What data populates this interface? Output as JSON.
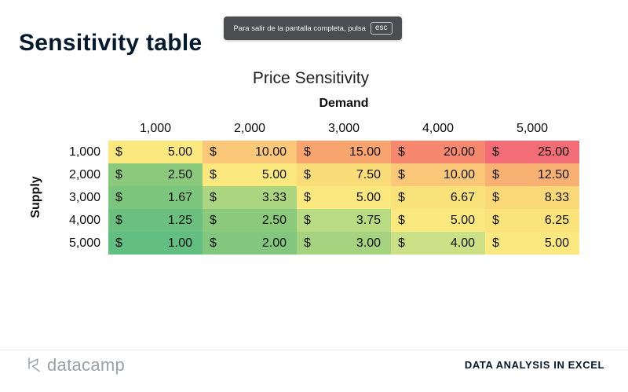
{
  "notification": {
    "text": "Para salir de la pantalla completa, pulsa",
    "key": "esc"
  },
  "title": "Sensitivity table",
  "chart": {
    "title": "Price Sensitivity",
    "col_axis_label": "Demand",
    "row_axis_label": "Supply",
    "columns": [
      "1,000",
      "2,000",
      "3,000",
      "4,000",
      "5,000"
    ],
    "rows": [
      {
        "label": "1,000",
        "cells": [
          {
            "currency": "$",
            "value": "5.00",
            "bg": "#FBE87E"
          },
          {
            "currency": "$",
            "value": "10.00",
            "bg": "#FAC878"
          },
          {
            "currency": "$",
            "value": "15.00",
            "bg": "#F8A46F"
          },
          {
            "currency": "$",
            "value": "20.00",
            "bg": "#F68870"
          },
          {
            "currency": "$",
            "value": "25.00",
            "bg": "#F36D76"
          }
        ]
      },
      {
        "label": "2,000",
        "cells": [
          {
            "currency": "$",
            "value": "2.50",
            "bg": "#8BC97D"
          },
          {
            "currency": "$",
            "value": "5.00",
            "bg": "#FBE87E"
          },
          {
            "currency": "$",
            "value": "7.50",
            "bg": "#FADD79"
          },
          {
            "currency": "$",
            "value": "10.00",
            "bg": "#FAC878"
          },
          {
            "currency": "$",
            "value": "12.50",
            "bg": "#F8B172"
          }
        ]
      },
      {
        "label": "3,000",
        "cells": [
          {
            "currency": "$",
            "value": "1.67",
            "bg": "#7BC57D"
          },
          {
            "currency": "$",
            "value": "3.33",
            "bg": "#ABD581"
          },
          {
            "currency": "$",
            "value": "5.00",
            "bg": "#FBE87E"
          },
          {
            "currency": "$",
            "value": "6.67",
            "bg": "#FAE27A"
          },
          {
            "currency": "$",
            "value": "8.33",
            "bg": "#F9D977"
          }
        ]
      },
      {
        "label": "4,000",
        "cells": [
          {
            "currency": "$",
            "value": "1.25",
            "bg": "#6CC07F"
          },
          {
            "currency": "$",
            "value": "2.50",
            "bg": "#8BC97D"
          },
          {
            "currency": "$",
            "value": "3.75",
            "bg": "#B9DB84"
          },
          {
            "currency": "$",
            "value": "5.00",
            "bg": "#FBE87E"
          },
          {
            "currency": "$",
            "value": "6.25",
            "bg": "#FAE37B"
          }
        ]
      },
      {
        "label": "5,000",
        "cells": [
          {
            "currency": "$",
            "value": "1.00",
            "bg": "#63BE81"
          },
          {
            "currency": "$",
            "value": "2.00",
            "bg": "#82C77D"
          },
          {
            "currency": "$",
            "value": "3.00",
            "bg": "#A5D380"
          },
          {
            "currency": "$",
            "value": "4.00",
            "bg": "#CCE187"
          },
          {
            "currency": "$",
            "value": "5.00",
            "bg": "#FBE87E"
          }
        ]
      }
    ]
  },
  "chart_data": {
    "type": "heatmap",
    "title": "Price Sensitivity",
    "xlabel": "Demand",
    "ylabel": "Supply",
    "x_categories": [
      1000,
      2000,
      3000,
      4000,
      5000
    ],
    "y_categories": [
      1000,
      2000,
      3000,
      4000,
      5000
    ],
    "values": [
      [
        5.0,
        10.0,
        15.0,
        20.0,
        25.0
      ],
      [
        2.5,
        5.0,
        7.5,
        10.0,
        12.5
      ],
      [
        1.67,
        3.33,
        5.0,
        6.67,
        8.33
      ],
      [
        1.25,
        2.5,
        3.75,
        5.0,
        6.25
      ],
      [
        1.0,
        2.0,
        3.0,
        4.0,
        5.0
      ]
    ],
    "value_unit": "$",
    "color_scale": [
      "#63BE81",
      "#FBE87E",
      "#F36D76"
    ],
    "legend": false
  },
  "footer": {
    "brand": "datacamp",
    "course": "DATA ANALYSIS IN EXCEL"
  },
  "colors": {
    "accent_navy": "#05192D",
    "toast_bg": "#4B4E50",
    "brand_gray": "#98A1A8"
  }
}
